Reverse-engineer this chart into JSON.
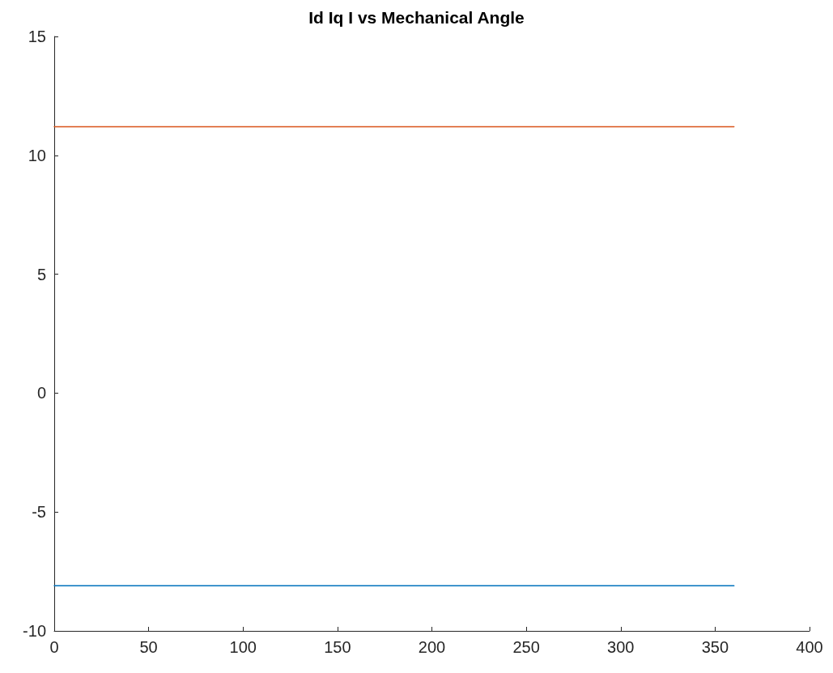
{
  "chart_data": {
    "type": "line",
    "title": "Id Iq I vs Mechanical Angle",
    "x": [
      0,
      360
    ],
    "series": [
      {
        "color": "#0072bd",
        "values": [
          -8.1,
          -8.1
        ]
      },
      {
        "color": "#d95319",
        "values": [
          11.2,
          11.2
        ]
      }
    ],
    "xlim": [
      0,
      400
    ],
    "xticks": [
      0,
      50,
      100,
      150,
      200,
      250,
      300,
      350,
      400
    ],
    "ylim": [
      -10,
      15
    ],
    "yticks": [
      -10,
      -5,
      0,
      5,
      10,
      15
    ],
    "grid": false,
    "marker": "none",
    "line_style": "solid"
  }
}
